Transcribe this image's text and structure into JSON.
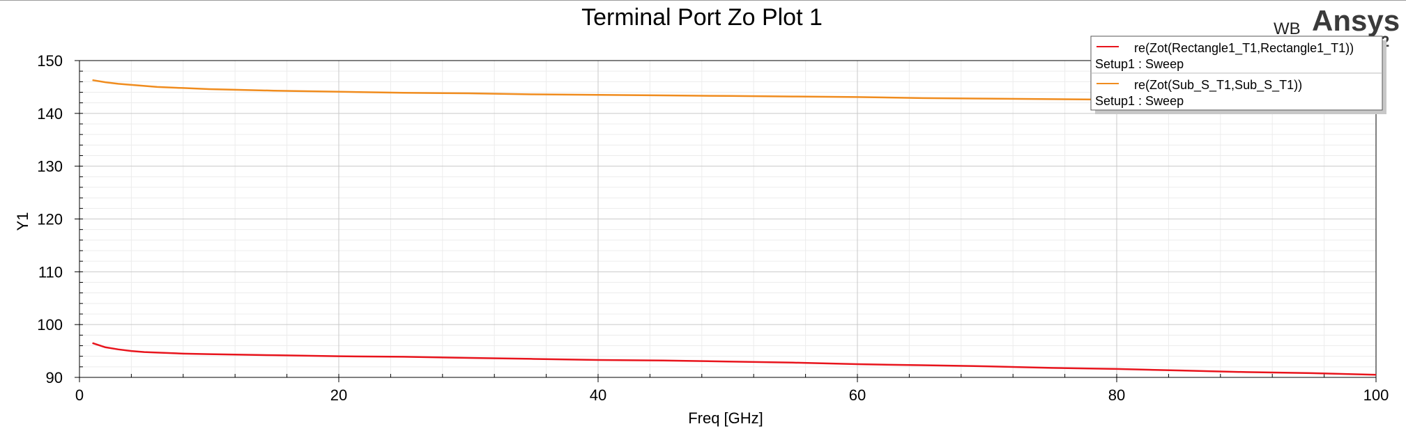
{
  "branding": {
    "prefix": "WB",
    "name": "Ansys",
    "version": "2021 R2"
  },
  "chart_data": {
    "type": "line",
    "title": "Terminal Port Zo Plot 1",
    "xlabel": "Freq [GHz]",
    "ylabel": "Y1",
    "xlim": [
      0,
      100
    ],
    "ylim": [
      90,
      150
    ],
    "xticks": [
      0,
      20,
      40,
      60,
      80,
      100
    ],
    "yticks": [
      90,
      100,
      110,
      120,
      130,
      140,
      150
    ],
    "grid": true,
    "legend_position": "top-right",
    "series": [
      {
        "name": "re(Zot(Rectangle1_T1,Rectangle1_T1))",
        "setup": "Setup1 : Sweep",
        "color": "#e8141c",
        "x": [
          1,
          2,
          3,
          4,
          5,
          6,
          8,
          10,
          15,
          20,
          25,
          30,
          35,
          40,
          45,
          50,
          55,
          60,
          65,
          70,
          75,
          80,
          85,
          90,
          95,
          100
        ],
        "y": [
          96.5,
          95.7,
          95.3,
          95.0,
          94.8,
          94.7,
          94.5,
          94.4,
          94.2,
          94.0,
          93.9,
          93.7,
          93.5,
          93.3,
          93.2,
          93.0,
          92.8,
          92.5,
          92.3,
          92.1,
          91.8,
          91.6,
          91.3,
          91.0,
          90.8,
          90.5
        ]
      },
      {
        "name": "re(Zot(Sub_S_T1,Sub_S_T1))",
        "setup": "Setup1 : Sweep",
        "color": "#f08c1e",
        "x": [
          1,
          2,
          3,
          4,
          5,
          6,
          8,
          10,
          15,
          20,
          25,
          30,
          35,
          40,
          45,
          50,
          55,
          60,
          65,
          70,
          75,
          80,
          85,
          90,
          95,
          100
        ],
        "y": [
          146.3,
          145.9,
          145.6,
          145.4,
          145.2,
          145.0,
          144.8,
          144.6,
          144.3,
          144.1,
          143.9,
          143.8,
          143.6,
          143.5,
          143.4,
          143.3,
          143.2,
          143.1,
          142.9,
          142.8,
          142.7,
          142.6,
          142.5,
          142.4,
          142.3,
          142.2
        ]
      }
    ]
  }
}
